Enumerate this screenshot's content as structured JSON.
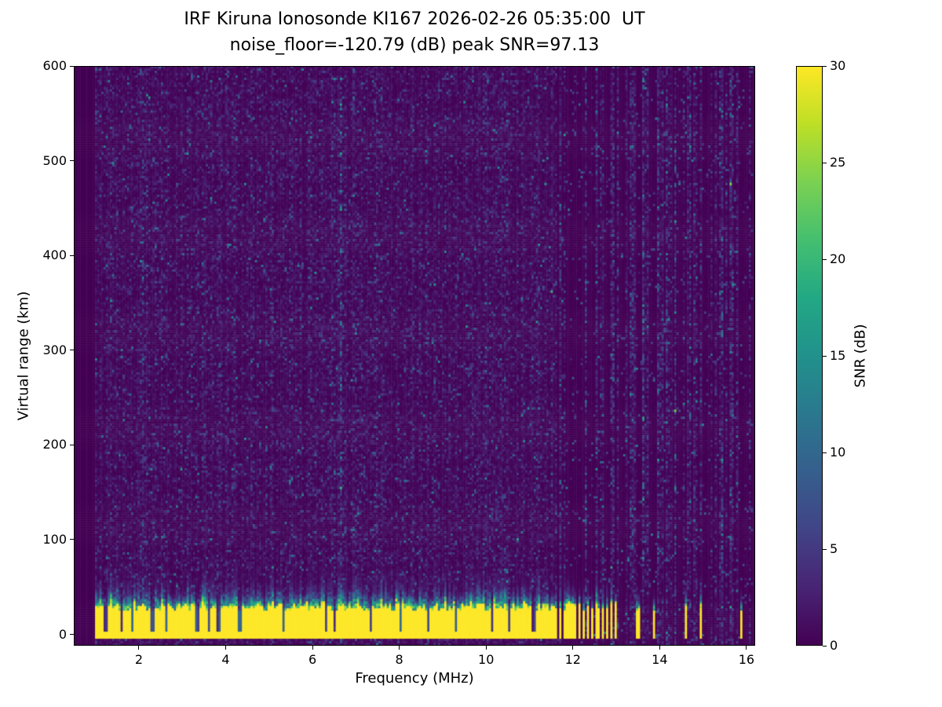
{
  "figure": {
    "background_color": "#ffffff",
    "text_color": "#000000"
  },
  "chart_data": {
    "type": "heatmap",
    "title_lines": [
      "IRF Kiruna Ionosonde KI167 2026-02-26 05:35:00  UT",
      "noise_floor=-120.79 (dB) peak SNR=97.13"
    ],
    "station": "IRF Kiruna Ionosonde KI167",
    "timestamp_ut": "2026-02-26 05:35:00 UT",
    "noise_floor_db": -120.79,
    "peak_snr_db": 97.13,
    "xlabel": "Frequency (MHz)",
    "ylabel": "Virtual range (km)",
    "colorbar_label": "SNR (dB)",
    "xlim": [
      0.5,
      16.2
    ],
    "ylim": [
      -12,
      600
    ],
    "clim": [
      0,
      30
    ],
    "x_ticks": [
      2,
      4,
      6,
      8,
      10,
      12,
      14,
      16
    ],
    "y_ticks": [
      0,
      100,
      200,
      300,
      400,
      500,
      600
    ],
    "colorbar_ticks": [
      0,
      5,
      10,
      15,
      20,
      25,
      30
    ],
    "colormap": "viridis",
    "colormap_stops": [
      "#440154",
      "#482475",
      "#414487",
      "#355f8d",
      "#2a788e",
      "#21918c",
      "#22a884",
      "#44bf70",
      "#7ad151",
      "#bddf26",
      "#fde725"
    ],
    "grid": false,
    "legend": "none (colorbar on right)",
    "seed": 7,
    "features": {
      "data_freq_range_mhz": [
        1.0,
        16.15
      ],
      "background_noise_mean_db": 1.2,
      "ground_echo_band": {
        "freq_range_mhz": [
          1.0,
          11.6
        ],
        "top_km_mean": 29,
        "bottom_km": -5,
        "peak_snr_db": 30
      },
      "band_notch_frequencies_mhz": [
        1.24,
        1.6,
        1.86,
        2.32,
        2.62,
        3.35,
        3.62,
        3.84,
        4.33,
        5.32,
        6.3,
        6.52,
        7.35,
        8.02,
        8.65,
        9.3,
        10.15,
        10.55,
        11.1
      ],
      "band_blob_regions_mhz": [
        [
          1.25,
          2.05
        ],
        [
          3.5,
          3.9
        ],
        [
          4.2,
          4.45
        ],
        [
          6.2,
          6.45
        ],
        [
          7.9,
          8.15
        ],
        [
          10.0,
          10.3
        ]
      ],
      "striped_noise_region_mhz": [
        11.6,
        16.15
      ],
      "pulse_frequencies_mhz": [
        11.62,
        11.73,
        11.83,
        11.93,
        12.03,
        12.14,
        12.24,
        12.35,
        12.46,
        12.57,
        12.68,
        12.78,
        12.89,
        13.0,
        13.5,
        13.88,
        14.6,
        14.95,
        15.88
      ]
    }
  }
}
